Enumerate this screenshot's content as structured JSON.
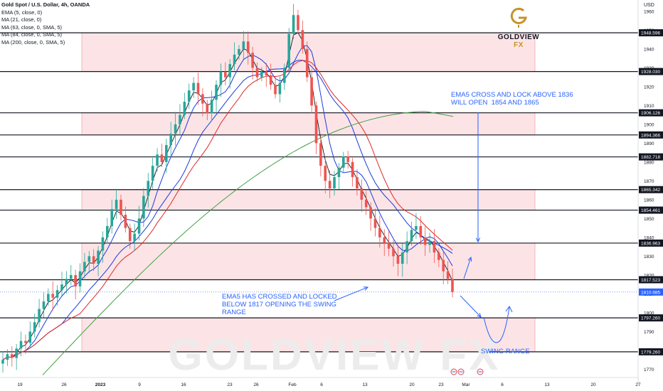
{
  "chart_data": {
    "type": "candlestick",
    "title": "Gold Spot / U.S. Dollar, 4h, OANDA",
    "indicators": [
      "EMA (5, close, 0)",
      "MA (21, close, 0)",
      "MA (63, close, 0, SMA, 5)",
      "MA (84, close, 0, SMA, 5)",
      "MA (200, close, 0, SMA, 5)"
    ],
    "currency": "USD",
    "ylim": [
      1766,
      1966
    ],
    "y_ticks": [
      1770,
      1780,
      1790,
      1800,
      1810,
      1820,
      1830,
      1840,
      1850,
      1860,
      1870,
      1880,
      1890,
      1900,
      1910,
      1920,
      1930,
      1940,
      1950,
      1960
    ],
    "x_ticks": [
      "19",
      "26",
      "2023",
      "9",
      "16",
      "23",
      "26",
      "Feb",
      "6",
      "13",
      "20",
      "23",
      "Mar",
      "6",
      "13",
      "20",
      "27"
    ],
    "levels": [
      {
        "value": 1948.596,
        "label": "1948.596"
      },
      {
        "value": 1928.03,
        "label": "1928.030"
      },
      {
        "value": 1906.126,
        "label": "1906.126"
      },
      {
        "value": 1894.366,
        "label": "1894.366"
      },
      {
        "value": 1882.718,
        "label": "1882.718"
      },
      {
        "value": 1865.342,
        "label": "1865.342"
      },
      {
        "value": 1854.461,
        "label": "1854.461"
      },
      {
        "value": 1836.963,
        "label": "1836.963"
      },
      {
        "value": 1817.523,
        "label": "1817.523"
      },
      {
        "value": 1797.26,
        "label": "1797.260"
      },
      {
        "value": 1779.26,
        "label": "1779.260"
      }
    ],
    "last_price": {
      "value": 1810.985,
      "label": "1810.985",
      "color": "#2962ff"
    },
    "zones": [
      {
        "from": 1928.03,
        "to": 1948.596
      },
      {
        "from": 1894.366,
        "to": 1906.126
      },
      {
        "from": 1854.461,
        "to": 1865.342
      },
      {
        "from": 1817.523,
        "to": 1836.963
      },
      {
        "from": 1779.26,
        "to": 1797.26
      }
    ],
    "price_path": [
      1775,
      1778,
      1776,
      1781,
      1785,
      1784,
      1790,
      1795,
      1802,
      1806,
      1810,
      1808,
      1812,
      1815,
      1818,
      1820,
      1814,
      1822,
      1827,
      1830,
      1826,
      1833,
      1840,
      1846,
      1855,
      1860,
      1852,
      1845,
      1838,
      1842,
      1850,
      1862,
      1870,
      1878,
      1884,
      1880,
      1889,
      1895,
      1900,
      1905,
      1912,
      1918,
      1922,
      1916,
      1911,
      1906,
      1913,
      1921,
      1928,
      1925,
      1932,
      1937,
      1940,
      1944,
      1938,
      1930,
      1925,
      1928,
      1926,
      1921,
      1916,
      1922,
      1930,
      1948,
      1958,
      1950,
      1940,
      1925,
      1910,
      1890,
      1878,
      1870,
      1866,
      1872,
      1877,
      1883,
      1880,
      1872,
      1866,
      1860,
      1856,
      1850,
      1845,
      1840,
      1837,
      1834,
      1830,
      1826,
      1832,
      1838,
      1844,
      1846,
      1840,
      1836,
      1838,
      1832,
      1828,
      1822,
      1818,
      1811
    ],
    "ma_series": [
      {
        "id": "ema5",
        "color": "#131722"
      },
      {
        "id": "ma21",
        "color": "#1a3bdb"
      },
      {
        "id": "ma63",
        "color": "#1a3bdb"
      },
      {
        "id": "ma84",
        "color": "#e02828"
      },
      {
        "id": "ma200",
        "color": "#43a047"
      }
    ],
    "annotations": [
      {
        "id": "upper",
        "text": "EMA5 CROSS AND LOCK ABOVE 1836\nWILL OPEN  1854 AND 1865"
      },
      {
        "id": "lower",
        "text": "EMA5 HAS CROSSED AND LOCKED\nBELOW 1817 OPENING THE SWING\nRANGE"
      },
      {
        "id": "swing",
        "text": "SWING RANGE"
      }
    ],
    "colors": {
      "up": "#26a69a",
      "down": "#ef5350",
      "zone": "#fce4e6",
      "zone_border": "#f3a5ad",
      "arrow": "#2962ff"
    }
  },
  "legend": {
    "title": "Gold Spot / U.S. Dollar, 4h, OANDA",
    "lines": [
      "EMA (5, close, 0)",
      "MA (21, close, 0)",
      "MA (63, close, 0, SMA, 5)",
      "MA (84, close, 0, SMA, 5)",
      "MA (200, close, 0, SMA, 5)"
    ]
  },
  "brand": {
    "name_left": "GOLDVIEW",
    "name_right": " FX",
    "watermark": "GOLDVIEW FX"
  },
  "axis": {
    "currency": "USD"
  }
}
